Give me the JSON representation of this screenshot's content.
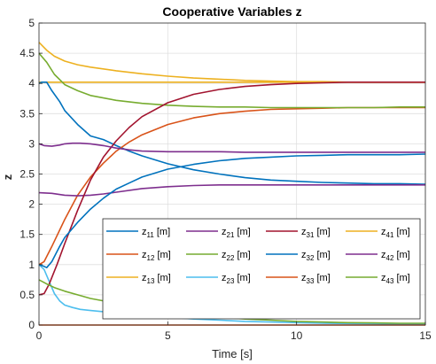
{
  "chart_data": {
    "type": "line",
    "title": "Cooperative Variables z",
    "xlabel": "Time [s]",
    "ylabel": "z",
    "xlim": [
      0,
      15
    ],
    "ylim": [
      0,
      5
    ],
    "xticks": [
      0,
      5,
      10,
      15
    ],
    "xtick_labels": [
      "0",
      "5",
      "10",
      "15"
    ],
    "yticks": [
      0,
      0.5,
      1,
      1.5,
      2,
      2.5,
      3,
      3.5,
      4,
      4.5,
      5
    ],
    "ytick_labels": [
      "0",
      "0.5",
      "1",
      "1.5",
      "2",
      "2.5",
      "3",
      "3.5",
      "4",
      "4.5",
      "5"
    ],
    "grid": true,
    "legend_position": "inside-lower-right",
    "legend_columns": 4,
    "series": [
      {
        "name": "z",
        "sub": "11",
        "unit": " [m]",
        "color": "#0072BD",
        "x": [
          0,
          0.1,
          0.3,
          0.5,
          0.8,
          1.0,
          1.5,
          2.0,
          2.5,
          3.0,
          3.5,
          4,
          5,
          6,
          7,
          8,
          9,
          10,
          11,
          12,
          13,
          14,
          15
        ],
        "y": [
          4.0,
          4.02,
          4.02,
          3.88,
          3.7,
          3.55,
          3.32,
          3.13,
          3.07,
          2.97,
          2.88,
          2.8,
          2.67,
          2.57,
          2.5,
          2.44,
          2.4,
          2.38,
          2.36,
          2.35,
          2.34,
          2.34,
          2.33
        ]
      },
      {
        "name": "z",
        "sub": "12",
        "unit": " [m]",
        "color": "#D95319",
        "x": [
          0,
          0.2,
          0.5,
          1.0,
          1.5,
          2.0,
          2.5,
          3.0,
          3.5,
          4,
          5,
          6,
          7,
          8,
          9,
          10,
          11,
          12,
          13,
          14,
          15
        ],
        "y": [
          1.0,
          1.05,
          1.3,
          1.75,
          2.15,
          2.45,
          2.68,
          2.88,
          3.03,
          3.15,
          3.32,
          3.43,
          3.5,
          3.54,
          3.57,
          3.58,
          3.59,
          3.6,
          3.6,
          3.6,
          3.6
        ]
      },
      {
        "name": "z",
        "sub": "13",
        "unit": " [m]",
        "color": "#EDB120",
        "x": [
          0,
          0.3,
          0.6,
          1.0,
          1.5,
          2,
          3,
          4,
          5,
          6,
          7,
          8,
          9,
          10,
          11,
          12,
          13,
          14,
          15
        ],
        "y": [
          4.68,
          4.55,
          4.45,
          4.37,
          4.31,
          4.27,
          4.21,
          4.16,
          4.12,
          4.09,
          4.07,
          4.05,
          4.04,
          4.03,
          4.03,
          4.02,
          4.02,
          4.02,
          4.02
        ]
      },
      {
        "name": "z",
        "sub": "21",
        "unit": " [m]",
        "color": "#7E2F8E",
        "x": [
          0,
          0.5,
          1,
          1.5,
          2,
          2.5,
          3,
          4,
          5,
          6,
          7,
          8,
          9,
          10,
          11,
          12,
          13,
          14,
          15
        ],
        "y": [
          2.19,
          2.18,
          2.15,
          2.14,
          2.15,
          2.17,
          2.2,
          2.26,
          2.29,
          2.31,
          2.32,
          2.32,
          2.32,
          2.32,
          2.32,
          2.32,
          2.32,
          2.32,
          2.32
        ]
      },
      {
        "name": "z",
        "sub": "22",
        "unit": " [m]",
        "color": "#77AC30",
        "x": [
          0,
          0.3,
          0.6,
          1.0,
          1.5,
          2,
          3,
          4,
          5,
          6,
          7,
          8,
          9,
          10,
          11,
          12,
          13,
          14,
          15
        ],
        "y": [
          4.5,
          4.35,
          4.15,
          3.98,
          3.88,
          3.8,
          3.72,
          3.67,
          3.64,
          3.62,
          3.61,
          3.61,
          3.6,
          3.6,
          3.6,
          3.6,
          3.6,
          3.61,
          3.61
        ]
      },
      {
        "name": "z",
        "sub": "23",
        "unit": " [m]",
        "color": "#4DBEEE",
        "x": [
          0,
          0.2,
          0.4,
          0.6,
          0.8,
          1.0,
          1.3,
          1.6,
          2,
          3,
          4,
          5,
          6,
          7,
          8,
          9,
          10,
          11,
          12,
          13,
          14,
          15
        ],
        "y": [
          1.0,
          0.92,
          0.72,
          0.52,
          0.4,
          0.33,
          0.29,
          0.26,
          0.24,
          0.2,
          0.16,
          0.13,
          0.1,
          0.08,
          0.06,
          0.05,
          0.04,
          0.03,
          0.025,
          0.02,
          0.015,
          0.01
        ]
      },
      {
        "name": "z",
        "sub": "31",
        "unit": " [m]",
        "color": "#A2142F",
        "x": [
          0,
          0.2,
          0.4,
          0.7,
          1.0,
          1.5,
          2,
          2.5,
          3,
          3.5,
          4,
          5,
          6,
          7,
          8,
          9,
          10,
          11,
          12,
          13,
          14,
          15
        ],
        "y": [
          0.5,
          0.52,
          0.68,
          1.0,
          1.35,
          1.9,
          2.4,
          2.78,
          3.05,
          3.27,
          3.45,
          3.68,
          3.82,
          3.9,
          3.95,
          3.98,
          4.0,
          4.01,
          4.02,
          4.02,
          4.02,
          4.02
        ]
      },
      {
        "name": "z",
        "sub": "32",
        "unit": " [m]",
        "color": "#0072BD",
        "x": [
          0,
          0.15,
          0.3,
          0.5,
          0.8,
          1.0,
          1.5,
          2,
          2.5,
          3,
          3.5,
          4,
          5,
          6,
          7,
          8,
          9,
          10,
          11,
          12,
          13,
          14,
          15
        ],
        "y": [
          1.0,
          0.98,
          0.95,
          1.05,
          1.3,
          1.45,
          1.7,
          1.92,
          2.1,
          2.25,
          2.35,
          2.45,
          2.58,
          2.66,
          2.72,
          2.76,
          2.78,
          2.8,
          2.81,
          2.82,
          2.82,
          2.82,
          2.83
        ]
      },
      {
        "name": "z",
        "sub": "33",
        "unit": " [m]",
        "color": "#D95319",
        "x": [
          0,
          15
        ],
        "y": [
          0,
          0
        ]
      },
      {
        "name": "z",
        "sub": "41",
        "unit": " [m]",
        "color": "#EDB120",
        "x": [
          0,
          15
        ],
        "y": [
          4.02,
          4.02
        ],
        "hidden_behind_z13": true
      },
      {
        "name": "z",
        "sub": "42",
        "unit": " [m]",
        "color": "#7E2F8E",
        "x": [
          0,
          0.2,
          0.5,
          0.8,
          1.0,
          1.3,
          1.6,
          2,
          2.5,
          3,
          3.5,
          4,
          5,
          6,
          7,
          8,
          9,
          10,
          11,
          12,
          13,
          14,
          15
        ],
        "y": [
          3.0,
          2.97,
          2.96,
          2.98,
          3.0,
          3.01,
          3.01,
          3.0,
          2.97,
          2.93,
          2.9,
          2.88,
          2.87,
          2.87,
          2.87,
          2.86,
          2.86,
          2.86,
          2.86,
          2.86,
          2.86,
          2.86,
          2.86
        ]
      },
      {
        "name": "z",
        "sub": "43",
        "unit": " [m]",
        "color": "#77AC30",
        "x": [
          0,
          0.3,
          0.6,
          1,
          1.5,
          2,
          3,
          4,
          5,
          6,
          7,
          8,
          9,
          10,
          11,
          12,
          13,
          14,
          15
        ],
        "y": [
          0.75,
          0.68,
          0.62,
          0.56,
          0.5,
          0.44,
          0.36,
          0.28,
          0.22,
          0.17,
          0.13,
          0.1,
          0.08,
          0.06,
          0.05,
          0.04,
          0.035,
          0.03,
          0.03
        ]
      }
    ],
    "legend_order": [
      "11",
      "21",
      "31",
      "41",
      "12",
      "22",
      "32",
      "42",
      "13",
      "23",
      "33",
      "43"
    ]
  }
}
